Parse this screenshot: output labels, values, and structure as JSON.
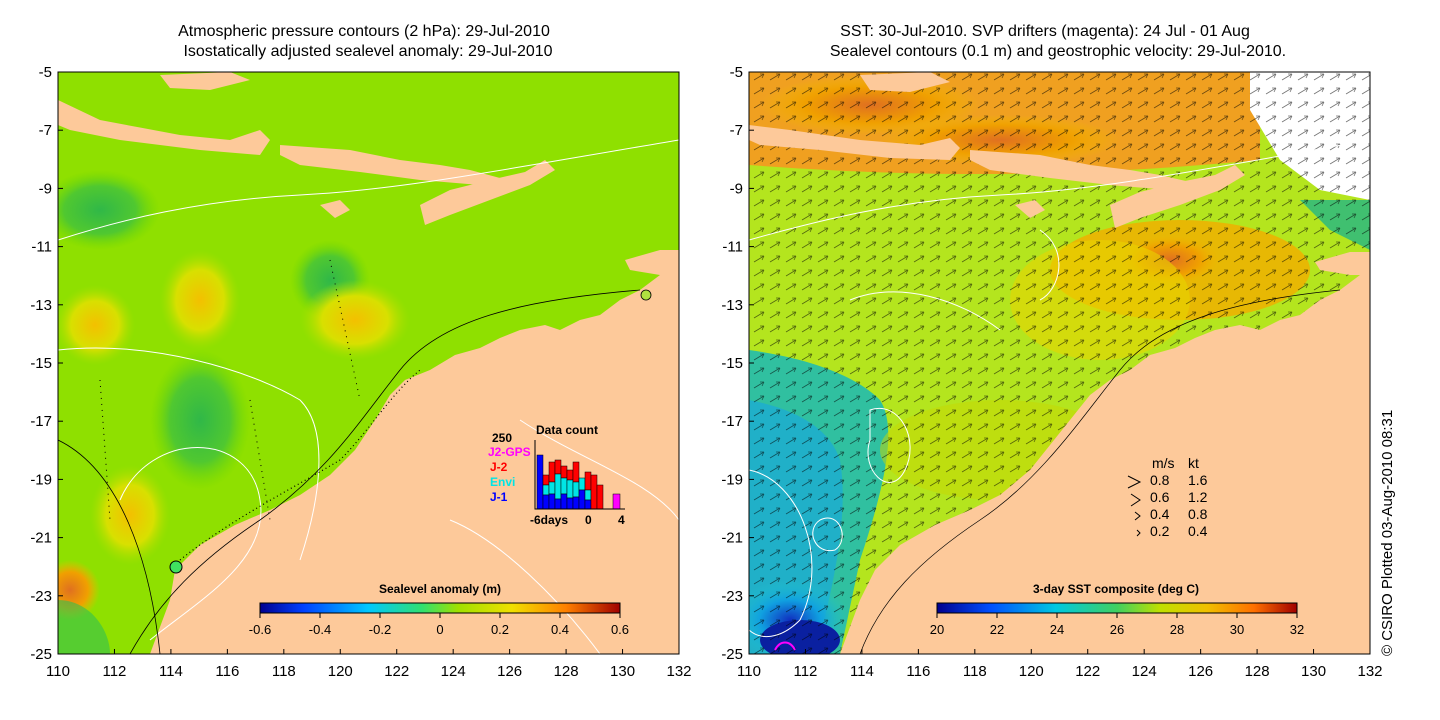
{
  "left_map": {
    "title_line1": "Atmospheric pressure contours (2 hPa): 29-Jul-2010",
    "title_line2": "Isostatically adjusted sealevel anomaly: 29-Jul-2010",
    "colorbar_label": "Sealevel anomaly (m)",
    "colorbar_ticks": [
      "-0.6",
      "-0.4",
      "-0.2",
      "0",
      "0.2",
      "0.4",
      "0.6"
    ],
    "data_count": {
      "title": "Data count",
      "ymax_label": "250",
      "sources": [
        {
          "label": "J2-GPS",
          "color": "#ff00ff"
        },
        {
          "label": "J-2",
          "color": "#ff0000"
        },
        {
          "label": "Envi",
          "color": "#00e5e5"
        },
        {
          "label": "J-1",
          "color": "#0000ff"
        }
      ],
      "x_ticks": [
        "-6days",
        "0",
        "4"
      ]
    }
  },
  "right_map": {
    "title_line1": "SST: 30-Jul-2010. SVP drifters (magenta): 24 Jul - 01 Aug",
    "title_line2": "Sealevel contours (0.1 m) and geostrophic velocity: 29-Jul-2010.",
    "colorbar_label": "3-day SST composite (deg C)",
    "colorbar_ticks": [
      "20",
      "22",
      "24",
      "26",
      "28",
      "30",
      "32"
    ],
    "velocity_legend": {
      "header_ms": "m/s",
      "header_kt": "kt",
      "rows": [
        {
          "ms": "0.8",
          "kt": "1.6"
        },
        {
          "ms": "0.6",
          "kt": "1.2"
        },
        {
          "ms": "0.4",
          "kt": "0.8"
        },
        {
          "ms": "0.2",
          "kt": "0.4"
        }
      ]
    }
  },
  "y_ticks": [
    "-5",
    "-7",
    "-9",
    "-11",
    "-13",
    "-15",
    "-17",
    "-19",
    "-21",
    "-23",
    "-25"
  ],
  "x_ticks": [
    "110",
    "112",
    "114",
    "116",
    "118",
    "120",
    "122",
    "124",
    "126",
    "128",
    "130",
    "132"
  ],
  "credit": "© CSIRO Plotted 03-Aug-2010 08:31",
  "colors": {
    "land": "#fdc99a",
    "ocean_left": "#8fe000",
    "ocean_right": "#b4e51e"
  }
}
